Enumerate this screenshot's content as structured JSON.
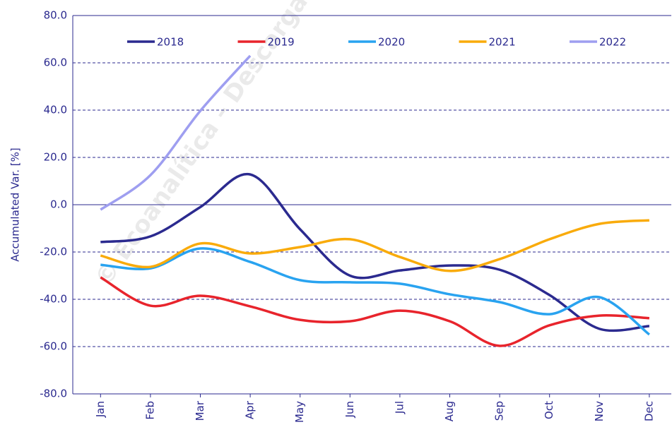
{
  "chart_data": {
    "type": "line",
    "y_label": "Accumulated Var. [%]",
    "watermark": "© Ecoanalítica – Descargado",
    "categories": [
      "Jan",
      "Feb",
      "Mar",
      "Apr",
      "May",
      "Jun",
      "Jul",
      "Aug",
      "Sep",
      "Oct",
      "Nov",
      "Dec"
    ],
    "series": [
      {
        "name": "2018",
        "color": "#2b2a8f",
        "values": [
          -15.8,
          -13.4,
          -1,
          12.8,
          -10.4,
          -30,
          -27.8,
          -25.7,
          -27.5,
          -38.2,
          -52.5,
          -51.3
        ]
      },
      {
        "name": "2019",
        "color": "#e8242c",
        "values": [
          -30.7,
          -42.7,
          -38.5,
          -43,
          -48.7,
          -49.3,
          -44.8,
          -49.3,
          -59.7,
          -51,
          -46.9,
          -48
        ]
      },
      {
        "name": "2020",
        "color": "#29a3f0",
        "values": [
          -25.4,
          -26.9,
          -18.5,
          -24.2,
          -31.9,
          -32.8,
          -33.4,
          -37.9,
          -41.2,
          -46.3,
          -39.1,
          -54.9
        ]
      },
      {
        "name": "2021",
        "color": "#f9ab0b",
        "values": [
          -21.5,
          -26.3,
          -16.4,
          -20.6,
          -17.9,
          -14.6,
          -22.1,
          -28,
          -23,
          -14.6,
          -8.1,
          -6.6
        ]
      },
      {
        "name": "2022",
        "color": "#9e9ef0",
        "values": [
          -2.1,
          12.5,
          39.7,
          63,
          null,
          null,
          null,
          null,
          null,
          null,
          null,
          null
        ]
      }
    ],
    "ylim": [
      -80,
      80
    ],
    "yticks": [
      {
        "value": -80,
        "label": "-80.0"
      },
      {
        "value": -60,
        "label": "-60.0"
      },
      {
        "value": -40,
        "label": "-40.0"
      },
      {
        "value": -20,
        "label": "-20.0"
      },
      {
        "value": 0,
        "label": "0.0"
      },
      {
        "value": 20,
        "label": "20.0"
      },
      {
        "value": 40,
        "label": "40.0"
      },
      {
        "value": 60,
        "label": "60.0"
      },
      {
        "value": 80,
        "label": "80.0"
      }
    ],
    "grid": true,
    "legend": "top"
  }
}
